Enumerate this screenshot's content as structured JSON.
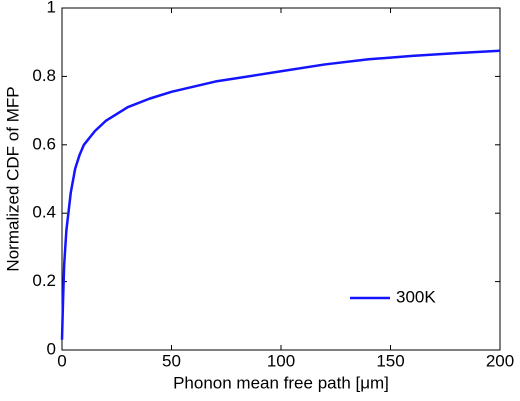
{
  "chart_data": {
    "type": "line",
    "xlabel": "Phonon mean free path [μm]",
    "ylabel": "Normalized CDF of MFP",
    "x": [
      0,
      0.5,
      1,
      2,
      4,
      6,
      8,
      10,
      15,
      20,
      30,
      40,
      50,
      60,
      70,
      80,
      90,
      100,
      120,
      140,
      160,
      180,
      200
    ],
    "series": [
      {
        "name": "300K",
        "color": "#1414ff",
        "values": [
          0.03,
          0.15,
          0.25,
          0.35,
          0.46,
          0.53,
          0.57,
          0.6,
          0.64,
          0.67,
          0.71,
          0.735,
          0.755,
          0.77,
          0.785,
          0.795,
          0.805,
          0.815,
          0.835,
          0.85,
          0.86,
          0.868,
          0.875
        ]
      }
    ],
    "xlim": [
      0,
      200
    ],
    "xticks": [
      0,
      50,
      100,
      150,
      200
    ],
    "ylim": [
      0,
      1
    ],
    "yticks": [
      0,
      0.2,
      0.4,
      0.6,
      0.8,
      1
    ],
    "grid": false,
    "legend": "lower right"
  }
}
